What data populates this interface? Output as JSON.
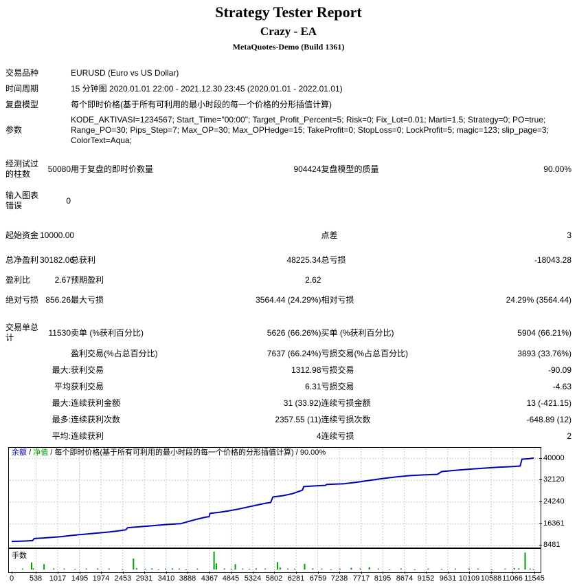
{
  "header": {
    "title": "Strategy Tester Report",
    "ea_name": "Crazy - EA",
    "server": "MetaQuotes-Demo (Build 1361)"
  },
  "table": {
    "rows": [
      [
        "交易品种",
        "",
        "EURUSD (Euro vs US Dollar)",
        "",
        "",
        ""
      ],
      [
        "时间周期",
        "",
        "15 分钟图 2020.01.01 22:00 - 2021.12.30 23:45 (2020.01.01 - 2022.01.01)",
        "",
        "",
        ""
      ],
      [
        "复盘模型",
        "",
        "每个即时价格(基于所有可利用的最小时段的每一个价格的分形插值计算)",
        "",
        "",
        ""
      ],
      [
        "参数",
        "",
        "KODE_AKTIVASI=1234567; Start_Time=\"00:00\"; Target_Profit_Percent=5; Risk=0; Fix_Lot=0.01; Marti=1.5; Strategy=0; PO=true; Range_PO=30; Pips_Step=7; Max_OP=30; Max_OPHedge=15; TakeProfit=0; StopLoss=0; LockProfit=5; magic=123; slip_page=3; ColorText=Aqua;",
        "",
        "",
        ""
      ],
      [
        "经测试过的柱数",
        "50080",
        "用于复盘的即时价数量",
        "904424",
        "复盘模型的质量",
        "90.00%"
      ],
      [
        "输入图表错误",
        "0",
        "",
        "",
        "",
        ""
      ],
      [
        "起始资金",
        "10000.00",
        "",
        "",
        "点差",
        "3"
      ],
      [
        "总净盈利",
        "30182.06",
        "总获利",
        "48225.34",
        "总亏损",
        "-18043.28"
      ],
      [
        "盈利比",
        "2.67",
        "预期盈利",
        "2.62",
        "",
        ""
      ],
      [
        "绝对亏损",
        "856.26",
        "最大亏损",
        "3564.44 (24.29%)",
        "相对亏损",
        "24.29% (3564.44)"
      ],
      [
        "交易单总计",
        "11530",
        "卖单 (%获利百分比)",
        "5626 (66.26%)",
        "买单 (%获利百分比)",
        "5904 (66.21%)"
      ],
      [
        "",
        "",
        "盈利交易(%占总百分比)",
        "7637 (66.24%)",
        "亏损交易(%占总百分比)",
        "3893 (33.76%)"
      ],
      [
        "",
        "最大:",
        "获利交易",
        "1312.98",
        "亏损交易",
        "-90.09"
      ],
      [
        "",
        "平均",
        "获利交易",
        "6.31",
        "亏损交易",
        "-4.63"
      ],
      [
        "",
        "最大:",
        "连续获利金额",
        "31 (33.92)",
        "连续亏损金额",
        "13 (-421.15)"
      ],
      [
        "",
        "最多:",
        "连续获利次数",
        "2357.55 (11)",
        "连续亏损次数",
        "-648.89 (12)"
      ],
      [
        "",
        "平均:",
        "连续获利",
        "4",
        "连续亏损",
        "2"
      ]
    ]
  },
  "chart_data": [
    {
      "type": "line",
      "name": "balance-curve",
      "legend": {
        "balance_label": "余额",
        "equity_label": "净值",
        "model_text": "每个即时价格(基于所有可利用的最小时段的每一个价格的分形插值计算)",
        "quality": "90.00%",
        "separator": " / "
      },
      "xlabel": "",
      "ylabel": "",
      "xlim": [
        0,
        11545
      ],
      "ylim": [
        8293,
        43900
      ],
      "grid": true,
      "grid_color": "#C8C8C8",
      "yticks": [
        40000,
        32120,
        24240,
        16361,
        8481
      ],
      "xticks": [
        0,
        538,
        1017,
        1495,
        1974,
        2453,
        2931,
        3410,
        3888,
        4367,
        4845,
        5324,
        5802,
        6281,
        6759,
        7238,
        7717,
        8195,
        8674,
        9152,
        9631,
        10109,
        10588,
        11066,
        11545
      ],
      "series": [
        {
          "name": "余额",
          "color": "#0000B8",
          "points": [
            [
              0,
              10000
            ],
            [
              150,
              10060
            ],
            [
              300,
              10160
            ],
            [
              460,
              10300
            ],
            [
              500,
              11050
            ],
            [
              700,
              11250
            ],
            [
              900,
              11500
            ],
            [
              1100,
              11750
            ],
            [
              1310,
              12150
            ],
            [
              1500,
              12450
            ],
            [
              1700,
              12750
            ],
            [
              1900,
              13050
            ],
            [
              2100,
              13350
            ],
            [
              2300,
              13700
            ],
            [
              2520,
              14200
            ],
            [
              2560,
              14950
            ],
            [
              2800,
              15300
            ],
            [
              3000,
              15550
            ],
            [
              3200,
              15850
            ],
            [
              3400,
              16100
            ],
            [
              3600,
              16300
            ],
            [
              3740,
              16450
            ],
            [
              3900,
              17200
            ],
            [
              4100,
              18100
            ],
            [
              4300,
              18850
            ],
            [
              4360,
              18950
            ],
            [
              4380,
              20150
            ],
            [
              4600,
              20600
            ],
            [
              4800,
              21100
            ],
            [
              5000,
              21700
            ],
            [
              5200,
              22400
            ],
            [
              5400,
              23100
            ],
            [
              5600,
              23800
            ],
            [
              5720,
              24100
            ],
            [
              5770,
              26100
            ],
            [
              6000,
              26600
            ],
            [
              6200,
              27300
            ],
            [
              6420,
              28550
            ],
            [
              6450,
              29850
            ],
            [
              6700,
              30100
            ],
            [
              6930,
              30300
            ],
            [
              6960,
              30650
            ],
            [
              7350,
              30900
            ],
            [
              7600,
              31400
            ],
            [
              7900,
              32100
            ],
            [
              8200,
              32800
            ],
            [
              8500,
              33400
            ],
            [
              8800,
              33850
            ],
            [
              9100,
              34100
            ],
            [
              9400,
              34300
            ],
            [
              9500,
              35300
            ],
            [
              9800,
              35750
            ],
            [
              10100,
              36150
            ],
            [
              10400,
              36500
            ],
            [
              10740,
              36850
            ],
            [
              11000,
              37050
            ],
            [
              11230,
              37300
            ],
            [
              11270,
              39800
            ],
            [
              11420,
              39950
            ],
            [
              11530,
              40182
            ]
          ]
        }
      ]
    },
    {
      "type": "bar",
      "name": "lot-sizes",
      "label": "手数",
      "color": "#00A000",
      "bars": [
        [
          240,
          0.05
        ],
        [
          440,
          0.4
        ],
        [
          480,
          0.06
        ],
        [
          715,
          0.3
        ],
        [
          930,
          0.06
        ],
        [
          1160,
          0.05
        ],
        [
          1400,
          0.04
        ],
        [
          1650,
          0.05
        ],
        [
          1900,
          0.06
        ],
        [
          2150,
          0.05
        ],
        [
          2450,
          0.04
        ],
        [
          2690,
          0.62
        ],
        [
          2760,
          0.08
        ],
        [
          2950,
          0.05
        ],
        [
          3100,
          0.06
        ],
        [
          3250,
          0.04
        ],
        [
          3400,
          0.05
        ],
        [
          3550,
          0.06
        ],
        [
          3700,
          0.05
        ],
        [
          3850,
          0.04
        ],
        [
          4100,
          0.05
        ],
        [
          4470,
          1.0
        ],
        [
          4520,
          0.35
        ],
        [
          4700,
          0.06
        ],
        [
          4850,
          0.05
        ],
        [
          4940,
          0.3
        ],
        [
          5100,
          0.05
        ],
        [
          5250,
          0.04
        ],
        [
          5400,
          0.06
        ],
        [
          5600,
          0.05
        ],
        [
          5870,
          0.42
        ],
        [
          5930,
          0.12
        ],
        [
          6100,
          0.05
        ],
        [
          6250,
          0.04
        ],
        [
          6470,
          0.32
        ],
        [
          6650,
          0.06
        ],
        [
          6850,
          0.05
        ],
        [
          7050,
          0.04
        ],
        [
          7250,
          0.05
        ],
        [
          7500,
          0.1
        ],
        [
          7700,
          0.06
        ],
        [
          7900,
          0.14
        ],
        [
          8100,
          0.05
        ],
        [
          8350,
          0.04
        ],
        [
          8600,
          0.05
        ],
        [
          8900,
          0.04
        ],
        [
          9200,
          0.05
        ],
        [
          9500,
          0.04
        ],
        [
          9800,
          0.05
        ],
        [
          10100,
          0.06
        ],
        [
          10300,
          0.05
        ],
        [
          10600,
          0.04
        ],
        [
          10900,
          0.05
        ],
        [
          11100,
          0.08
        ],
        [
          11200,
          0.06
        ],
        [
          11340,
          0.95
        ],
        [
          11450,
          0.05
        ],
        [
          11520,
          0.04
        ]
      ]
    }
  ]
}
